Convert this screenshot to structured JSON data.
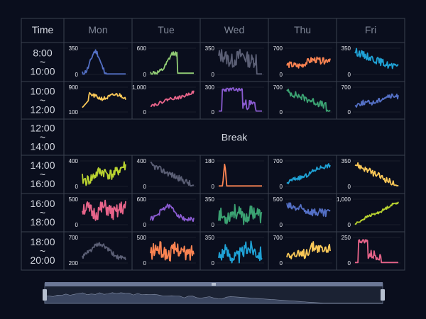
{
  "header": {
    "time_label": "Time",
    "days": [
      "Mon",
      "Tue",
      "Wed",
      "Thu",
      "Fri"
    ]
  },
  "time_slots": [
    {
      "start": "8:00",
      "sep": "~",
      "end": "10:00"
    },
    {
      "start": "10:00",
      "sep": "~",
      "end": "12:00"
    },
    {
      "start": "12:00",
      "sep": "~",
      "end": "14:00"
    },
    {
      "start": "14:00",
      "sep": "~",
      "end": "16:00"
    },
    {
      "start": "16:00",
      "sep": "~",
      "end": "18:00"
    },
    {
      "start": "18:00",
      "sep": "~",
      "end": "20:00"
    }
  ],
  "break_label": "Break",
  "break_row": 2,
  "colors": {
    "background": "#0a0e1d",
    "grid": "#3b4150",
    "scroller_fill": "#3c4761",
    "scroller_bg": "#1b2233",
    "scroller_handle": "#b7c0d0"
  },
  "navigator": {
    "handle_icon": "grip-icon",
    "range": [
      0.0,
      1.0
    ]
  },
  "chart_data": [
    {
      "type": "line",
      "row": 0,
      "day": "Mon",
      "color": "#5470c6",
      "ylim": [
        0,
        350
      ],
      "yticks": [
        "0",
        "350"
      ],
      "pattern": "peak",
      "params": {
        "c": 0.3,
        "w": 0.22,
        "hi": 0.88,
        "lo": 0.02,
        "cut": 0.55
      },
      "seed": 11
    },
    {
      "type": "line",
      "row": 0,
      "day": "Tue",
      "color": "#91cc75",
      "ylim": [
        0,
        600
      ],
      "yticks": [
        "0",
        "600"
      ],
      "pattern": "peak",
      "params": {
        "c": 0.55,
        "w": 0.3,
        "hi": 0.82,
        "lo": 0.05,
        "cut": 0.62
      },
      "seed": 12
    },
    {
      "type": "line",
      "row": 0,
      "day": "Wed",
      "color": "#5b5f75",
      "ylim": [
        0,
        350
      ],
      "yticks": [
        "0",
        "350"
      ],
      "pattern": "noise",
      "params": {
        "base": 0.62,
        "amp": 0.28,
        "dropAt": 0.88
      },
      "seed": 13
    },
    {
      "type": "line",
      "row": 0,
      "day": "Thu",
      "color": "#fc8452",
      "ylim": [
        0,
        700
      ],
      "yticks": [
        "0",
        "700"
      ],
      "pattern": "rise",
      "params": {
        "a": 0.3,
        "b": 0.62,
        "amp": 0.12
      },
      "seed": 14
    },
    {
      "type": "line",
      "row": 0,
      "day": "Fri",
      "color": "#1fa2d6",
      "ylim": [
        0,
        350
      ],
      "yticks": [
        "0",
        "350"
      ],
      "pattern": "fall",
      "params": {
        "a": 0.88,
        "b": 0.2,
        "amp": 0.14,
        "end": 0.35
      },
      "seed": 15
    },
    {
      "type": "line",
      "row": 1,
      "day": "Mon",
      "color": "#fac858",
      "ylim": [
        100,
        900
      ],
      "yticks": [
        "100",
        "900"
      ],
      "pattern": "steprise",
      "params": {
        "a": 0.18,
        "b": 0.62,
        "amp": 0.08
      },
      "seed": 21
    },
    {
      "type": "line",
      "row": 1,
      "day": "Tue",
      "color": "#e8648a",
      "ylim": [
        0,
        1000
      ],
      "yticks": [
        "0",
        "1,000"
      ],
      "pattern": "rise",
      "params": {
        "a": 0.28,
        "b": 0.78,
        "amp": 0.06
      },
      "seed": 22
    },
    {
      "type": "line",
      "row": 1,
      "day": "Wed",
      "color": "#8a5bd1",
      "ylim": [
        0,
        300
      ],
      "yticks": [
        "0",
        "300"
      ],
      "pattern": "block",
      "params": {
        "s": 0.08,
        "e": 0.55,
        "hi": 0.9,
        "lo": 0.04
      },
      "seed": 23
    },
    {
      "type": "line",
      "row": 1,
      "day": "Thu",
      "color": "#3ba272",
      "ylim": [
        0,
        700
      ],
      "yticks": [
        "0",
        "700"
      ],
      "pattern": "fall",
      "params": {
        "a": 0.82,
        "b": 0.18,
        "amp": 0.14,
        "end": 0.05
      },
      "seed": 24
    },
    {
      "type": "line",
      "row": 1,
      "day": "Fri",
      "color": "#5470c6",
      "ylim": [
        0,
        700
      ],
      "yticks": [
        "0",
        "700"
      ],
      "pattern": "rise",
      "params": {
        "a": 0.25,
        "b": 0.68,
        "amp": 0.1
      },
      "seed": 25
    },
    {
      "type": "line",
      "row": 3,
      "day": "Mon",
      "color": "#b8d230",
      "ylim": [
        0,
        400
      ],
      "yticks": [
        "0",
        "400"
      ],
      "pattern": "rise",
      "params": {
        "a": 0.3,
        "b": 0.7,
        "amp": 0.22
      },
      "seed": 41
    },
    {
      "type": "line",
      "row": 3,
      "day": "Tue",
      "color": "#5b5f75",
      "ylim": [
        0,
        400
      ],
      "yticks": [
        "0",
        "400"
      ],
      "pattern": "fall",
      "params": {
        "a": 0.85,
        "b": 0.04,
        "amp": 0.12,
        "end": 0.03
      },
      "seed": 42
    },
    {
      "type": "line",
      "row": 3,
      "day": "Wed",
      "color": "#fc8452",
      "ylim": [
        0,
        180
      ],
      "yticks": [
        "0",
        "180"
      ],
      "pattern": "spike",
      "params": {
        "at": 0.14,
        "hi": 0.95,
        "lo": 0.02
      },
      "seed": 43
    },
    {
      "type": "line",
      "row": 3,
      "day": "Thu",
      "color": "#1fa2d6",
      "ylim": [
        0,
        700
      ],
      "yticks": [
        "0",
        "700"
      ],
      "pattern": "rise",
      "params": {
        "a": 0.12,
        "b": 0.88,
        "amp": 0.08
      },
      "seed": 44
    },
    {
      "type": "line",
      "row": 3,
      "day": "Fri",
      "color": "#fac858",
      "ylim": [
        0,
        350
      ],
      "yticks": [
        "0",
        "350"
      ],
      "pattern": "fall",
      "params": {
        "a": 0.88,
        "b": 0.03,
        "amp": 0.12,
        "end": 0.02
      },
      "seed": 45
    },
    {
      "type": "line",
      "row": 4,
      "day": "Mon",
      "color": "#e8648a",
      "ylim": [
        0,
        500
      ],
      "yticks": [
        "0",
        "500"
      ],
      "pattern": "noise",
      "params": {
        "base": 0.55,
        "amp": 0.3
      },
      "seed": 51
    },
    {
      "type": "line",
      "row": 4,
      "day": "Tue",
      "color": "#8a5bd1",
      "ylim": [
        0,
        600
      ],
      "yticks": [
        "0",
        "600"
      ],
      "pattern": "peak",
      "params": {
        "c": 0.4,
        "w": 0.35,
        "hi": 0.72,
        "lo": 0.2,
        "cut": 1.1
      },
      "seed": 52
    },
    {
      "type": "line",
      "row": 4,
      "day": "Wed",
      "color": "#3ba272",
      "ylim": [
        0,
        350
      ],
      "yticks": [
        "0",
        "350"
      ],
      "pattern": "noise",
      "params": {
        "base": 0.4,
        "amp": 0.3
      },
      "seed": 53
    },
    {
      "type": "line",
      "row": 4,
      "day": "Thu",
      "color": "#5470c6",
      "ylim": [
        0,
        500
      ],
      "yticks": [
        "0",
        "500"
      ],
      "pattern": "fall",
      "params": {
        "a": 0.72,
        "b": 0.38,
        "amp": 0.18,
        "end": 0.55
      },
      "seed": 54
    },
    {
      "type": "line",
      "row": 4,
      "day": "Fri",
      "color": "#b8d230",
      "ylim": [
        0,
        1000
      ],
      "yticks": [
        "0",
        "1,000"
      ],
      "pattern": "rise",
      "params": {
        "a": 0.05,
        "b": 0.88,
        "amp": 0.05
      },
      "seed": 55
    },
    {
      "type": "line",
      "row": 5,
      "day": "Mon",
      "color": "#5b5f75",
      "ylim": [
        200,
        700
      ],
      "yticks": [
        "200",
        "700"
      ],
      "pattern": "peak",
      "params": {
        "c": 0.4,
        "w": 0.45,
        "hi": 0.72,
        "lo": 0.15,
        "cut": 1.1
      },
      "seed": 61
    },
    {
      "type": "line",
      "row": 5,
      "day": "Tue",
      "color": "#fc8452",
      "ylim": [
        0,
        500
      ],
      "yticks": [
        "0",
        "500"
      ],
      "pattern": "noise",
      "params": {
        "base": 0.45,
        "amp": 0.3
      },
      "seed": 62
    },
    {
      "type": "line",
      "row": 5,
      "day": "Wed",
      "color": "#1fa2d6",
      "ylim": [
        0,
        350
      ],
      "yticks": [
        "0",
        "350"
      ],
      "pattern": "rise",
      "params": {
        "a": 0.25,
        "b": 0.55,
        "amp": 0.3
      },
      "seed": 63
    },
    {
      "type": "line",
      "row": 5,
      "day": "Thu",
      "color": "#fac858",
      "ylim": [
        0,
        700
      ],
      "yticks": [
        "0",
        "700"
      ],
      "pattern": "rise",
      "params": {
        "a": 0.25,
        "b": 0.7,
        "amp": 0.22
      },
      "seed": 64
    },
    {
      "type": "line",
      "row": 5,
      "day": "Fri",
      "color": "#e8648a",
      "ylim": [
        0,
        250
      ],
      "yticks": [
        "0",
        "250"
      ],
      "pattern": "block",
      "params": {
        "s": 0.08,
        "e": 0.3,
        "hi": 0.85,
        "lo": 0.02
      },
      "seed": 65
    }
  ]
}
